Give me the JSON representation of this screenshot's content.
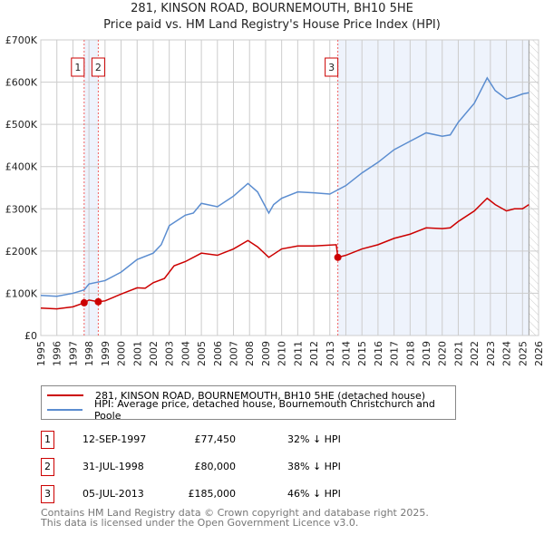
{
  "title": "281, KINSON ROAD, BOURNEMOUTH, BH10 5HE",
  "subtitle": "Price paid vs. HM Land Registry's House Price Index (HPI)",
  "chart_data": {
    "type": "line",
    "xlim": [
      1995,
      2026
    ],
    "ylim": [
      0,
      700000
    ],
    "yticks": [
      {
        "v": 0,
        "label": "£0"
      },
      {
        "v": 100000,
        "label": "£100K"
      },
      {
        "v": 200000,
        "label": "£200K"
      },
      {
        "v": 300000,
        "label": "£300K"
      },
      {
        "v": 400000,
        "label": "£400K"
      },
      {
        "v": 500000,
        "label": "£500K"
      },
      {
        "v": 600000,
        "label": "£600K"
      },
      {
        "v": 700000,
        "label": "£700K"
      }
    ],
    "xticks": [
      "1995",
      "1996",
      "1997",
      "1998",
      "1999",
      "2000",
      "2001",
      "2002",
      "2003",
      "2004",
      "2005",
      "2006",
      "2007",
      "2008",
      "2009",
      "2010",
      "2011",
      "2012",
      "2013",
      "2014",
      "2015",
      "2016",
      "2017",
      "2018",
      "2019",
      "2020",
      "2021",
      "2022",
      "2023",
      "2024",
      "2025",
      "2026"
    ],
    "grid": true,
    "shaded": [
      [
        1997.7,
        1998.58
      ],
      [
        2013.5,
        2025.4
      ]
    ],
    "hatched_from": 2025.4,
    "series": [
      {
        "name": "281, KINSON ROAD, BOURNEMOUTH, BH10 5HE (detached house)",
        "color": "#cc0000",
        "x": [
          1995,
          1996,
          1997,
          1997.7,
          1998,
          1998.58,
          1999,
          2000,
          2001,
          2001.5,
          2002,
          2002.7,
          2003.3,
          2004,
          2005,
          2006,
          2007,
          2007.9,
          2008.5,
          2009.2,
          2010,
          2011,
          2012,
          2013.4,
          2013.5,
          2014,
          2015,
          2016,
          2017,
          2018,
          2019,
          2020,
          2020.5,
          2021,
          2022,
          2022.8,
          2023.3,
          2024,
          2024.5,
          2025,
          2025.4
        ],
        "y": [
          65000,
          63000,
          68000,
          77450,
          84000,
          80000,
          82000,
          98000,
          113000,
          112000,
          125000,
          135000,
          165000,
          175000,
          195000,
          190000,
          205000,
          225000,
          210000,
          185000,
          205000,
          212000,
          212000,
          215000,
          185000,
          190000,
          205000,
          215000,
          230000,
          240000,
          255000,
          253000,
          255000,
          270000,
          295000,
          325000,
          310000,
          295000,
          300000,
          300000,
          310000
        ]
      },
      {
        "name": "HPI: Average price, detached house, Bournemouth Christchurch and Poole",
        "color": "#5b8dd0",
        "x": [
          1995,
          1996,
          1997,
          1997.7,
          1998,
          1999,
          2000,
          2001,
          2002,
          2002.5,
          2003,
          2004,
          2004.5,
          2005,
          2006,
          2007,
          2007.9,
          2008.5,
          2009.2,
          2009.5,
          2010,
          2011,
          2012,
          2013,
          2014,
          2015,
          2016,
          2017,
          2018,
          2019,
          2020,
          2020.5,
          2021,
          2022,
          2022.8,
          2023.3,
          2024,
          2024.5,
          2025,
          2025.4
        ],
        "y": [
          95000,
          93000,
          100000,
          108000,
          122000,
          130000,
          150000,
          180000,
          195000,
          215000,
          260000,
          285000,
          290000,
          313000,
          305000,
          330000,
          360000,
          340000,
          290000,
          310000,
          325000,
          340000,
          338000,
          335000,
          355000,
          385000,
          410000,
          440000,
          460000,
          480000,
          472000,
          475000,
          505000,
          550000,
          610000,
          580000,
          560000,
          565000,
          572000,
          575000
        ]
      }
    ],
    "sales": [
      {
        "id": "1",
        "x": 1997.7,
        "y": 77450
      },
      {
        "id": "2",
        "x": 1998.58,
        "y": 80000
      },
      {
        "id": "3",
        "x": 2013.5,
        "y": 185000
      }
    ],
    "legend_position": "below"
  },
  "legend": [
    "281, KINSON ROAD, BOURNEMOUTH, BH10 5HE (detached house)",
    "HPI: Average price, detached house, Bournemouth Christchurch and Poole"
  ],
  "transactions": [
    {
      "num": "1",
      "date": "12-SEP-1997",
      "price": "£77,450",
      "hpi": "32% ↓ HPI"
    },
    {
      "num": "2",
      "date": "31-JUL-1998",
      "price": "£80,000",
      "hpi": "38% ↓ HPI"
    },
    {
      "num": "3",
      "date": "05-JUL-2013",
      "price": "£185,000",
      "hpi": "46% ↓ HPI"
    }
  ],
  "footer": [
    "Contains HM Land Registry data © Crown copyright and database right 2025.",
    "This data is licensed under the Open Government Licence v3.0."
  ]
}
